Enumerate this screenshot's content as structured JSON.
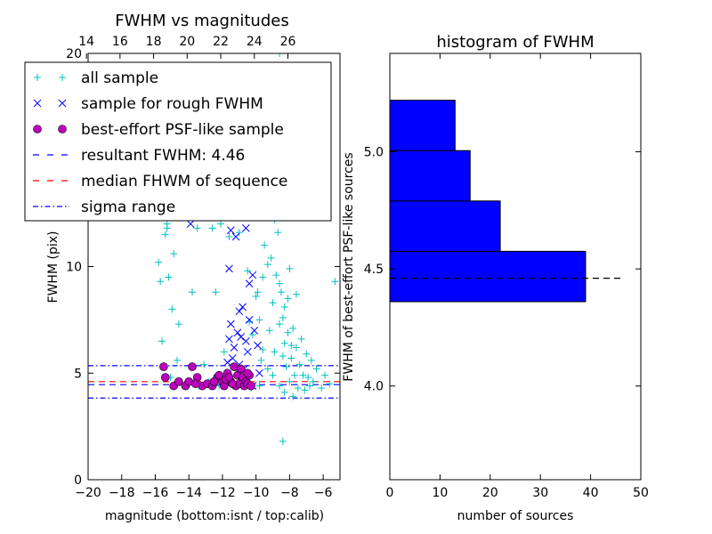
{
  "chart_data": [
    {
      "type": "scatter",
      "title": "FWHM vs magnitudes",
      "xlabel": "magnitude (bottom:isnt / top:calib)",
      "ylabel": "FWHM (pix)",
      "xlim": [
        -20,
        -5
      ],
      "ylim": [
        0,
        20
      ],
      "x_ticks": [
        -20,
        -18,
        -16,
        -14,
        -12,
        -10,
        -8,
        -6
      ],
      "x_tick_labels": [
        "−20",
        "−18",
        "−16",
        "−14",
        "−12",
        "−10",
        "−8",
        "−6"
      ],
      "y_ticks": [
        0,
        5,
        10,
        20
      ],
      "y_tick_labels": [
        "0",
        "5",
        "10",
        "20"
      ],
      "top_axis": {
        "ticks": [
          14,
          16,
          18,
          20,
          22,
          24,
          26
        ],
        "tick_labels": [
          "14",
          "16",
          "18",
          "20",
          "22",
          "24",
          "26"
        ],
        "offset": 34.1
      },
      "legend_position": "top-left",
      "legend": [
        {
          "label": "all sample",
          "marker": "plus",
          "color": "#00bfbf"
        },
        {
          "label": "sample for rough FWHM",
          "marker": "x",
          "color": "#0000ff"
        },
        {
          "label": "best-effort PSF-like sample",
          "marker": "circle",
          "color": "#bf00bf"
        },
        {
          "label": "resultant FWHM: 4.46",
          "line": "dashed",
          "color": "#0000ff"
        },
        {
          "label": "median FHWM of sequence",
          "line": "dashed",
          "color": "#ff0000"
        },
        {
          "label": "sigma range",
          "line": "dashdot",
          "color": "#0000ff"
        }
      ],
      "hlines": {
        "resultant": 4.46,
        "median": 4.6,
        "sigma_range": [
          3.83,
          5.35
        ]
      },
      "series": [
        {
          "name": "all sample",
          "marker": "plus",
          "color": "#00bfbf",
          "points": [
            [
              -15.8,
              10.2
            ],
            [
              -15.2,
              9.5
            ],
            [
              -15.4,
              11.5
            ],
            [
              -14.9,
              10.6
            ],
            [
              -14.6,
              7.3
            ],
            [
              -15.0,
              8.0
            ],
            [
              -15.6,
              6.5
            ],
            [
              -14.7,
              5.6
            ],
            [
              -15.7,
              9.3
            ],
            [
              -15.3,
              11.8
            ],
            [
              -15.3,
              12.0
            ],
            [
              -13.8,
              8.8
            ],
            [
              -13.5,
              11.8
            ],
            [
              -13.1,
              5.4
            ],
            [
              -12.6,
              11.8
            ],
            [
              -12.1,
              12.0
            ],
            [
              -12.4,
              8.8
            ],
            [
              -11.9,
              6.0
            ],
            [
              -11.6,
              11.4
            ],
            [
              -11.0,
              11.6
            ],
            [
              -10.8,
              12.3
            ],
            [
              -10.5,
              9.8
            ],
            [
              -10.4,
              7.4
            ],
            [
              -9.9,
              8.8
            ],
            [
              -9.6,
              9.5
            ],
            [
              -9.3,
              10.1
            ],
            [
              -9.4,
              12.4
            ],
            [
              -9.2,
              7.0
            ],
            [
              -9.0,
              8.3
            ],
            [
              -8.9,
              6.0
            ],
            [
              -8.7,
              11.6
            ],
            [
              -8.6,
              9.2
            ],
            [
              -8.4,
              7.6
            ],
            [
              -8.3,
              6.4
            ],
            [
              -8.1,
              8.5
            ],
            [
              -8.0,
              9.9
            ],
            [
              -7.9,
              5.7
            ],
            [
              -7.8,
              7.1
            ],
            [
              -7.6,
              6.2
            ],
            [
              -7.4,
              5.4
            ],
            [
              -7.2,
              4.9
            ],
            [
              -7.0,
              5.9
            ],
            [
              -6.8,
              4.4
            ],
            [
              -6.6,
              4.6
            ],
            [
              -6.4,
              5.2
            ],
            [
              -6.1,
              4.3
            ],
            [
              -5.9,
              4.9
            ],
            [
              -5.6,
              4.5
            ],
            [
              -5.3,
              9.3
            ],
            [
              -9.1,
              19.0
            ],
            [
              -8.8,
              19.3
            ],
            [
              -8.6,
              20.0
            ],
            [
              -9.4,
              18.8
            ],
            [
              -7.6,
              19.4
            ],
            [
              -9.7,
              13.9
            ],
            [
              -9.2,
              14.8
            ],
            [
              -8.9,
              16.0
            ],
            [
              -8.5,
              15.2
            ],
            [
              -9.0,
              17.1
            ],
            [
              -8.7,
              13.4
            ],
            [
              -8.2,
              12.7
            ],
            [
              -9.5,
              11.0
            ],
            [
              -9.1,
              10.4
            ],
            [
              -8.8,
              9.6
            ],
            [
              -8.5,
              8.8
            ],
            [
              -8.3,
              8.1
            ],
            [
              -8.6,
              7.3
            ],
            [
              -8.1,
              6.9
            ],
            [
              -7.9,
              6.3
            ],
            [
              -8.4,
              5.8
            ],
            [
              -8.2,
              5.3
            ],
            [
              -7.7,
              4.9
            ],
            [
              -8.0,
              4.6
            ],
            [
              -7.5,
              4.3
            ],
            [
              -8.3,
              4.1
            ],
            [
              -7.8,
              3.9
            ],
            [
              -8.6,
              4.4
            ],
            [
              -9.0,
              4.9
            ],
            [
              -9.3,
              5.2
            ],
            [
              -9.6,
              6.1
            ],
            [
              -9.8,
              7.5
            ],
            [
              -10.0,
              8.6
            ],
            [
              -10.2,
              6.8
            ],
            [
              -9.7,
              5.6
            ],
            [
              -8.4,
              1.8
            ],
            [
              -10.3,
              4.3
            ],
            [
              -10.6,
              4.8
            ],
            [
              -11.0,
              5.1
            ],
            [
              -11.3,
              4.5
            ],
            [
              -11.7,
              4.7
            ],
            [
              -12.2,
              4.4
            ],
            [
              -12.8,
              4.6
            ],
            [
              -13.4,
              4.4
            ],
            [
              -14.2,
              4.5
            ],
            [
              -15.1,
              4.8
            ],
            [
              -9.8,
              4.4
            ],
            [
              -7.1,
              4.2
            ],
            [
              -6.9,
              4.8
            ],
            [
              -7.3,
              6.6
            ],
            [
              -6.7,
              5.6
            ],
            [
              -7.6,
              8.7
            ],
            [
              -8.9,
              12.2
            ]
          ]
        },
        {
          "name": "sample for rough FWHM",
          "marker": "x",
          "color": "#0000ff",
          "points": [
            [
              -13.9,
              12.0
            ],
            [
              -11.5,
              11.7
            ],
            [
              -11.2,
              11.4
            ],
            [
              -10.6,
              11.8
            ],
            [
              -11.6,
              9.9
            ],
            [
              -10.4,
              9.2
            ],
            [
              -10.2,
              9.6
            ],
            [
              -10.8,
              8.1
            ],
            [
              -10.4,
              7.5
            ],
            [
              -11.0,
              7.9
            ],
            [
              -11.5,
              7.3
            ],
            [
              -11.1,
              6.9
            ],
            [
              -10.6,
              6.5
            ],
            [
              -10.9,
              6.7
            ],
            [
              -11.3,
              6.2
            ],
            [
              -11.6,
              6.6
            ],
            [
              -10.1,
              7.0
            ],
            [
              -10.5,
              6.0
            ],
            [
              -11.0,
              5.4
            ],
            [
              -11.4,
              5.7
            ],
            [
              -10.7,
              5.2
            ],
            [
              -10.8,
              4.7
            ],
            [
              -10.2,
              4.4
            ],
            [
              -9.9,
              6.3
            ],
            [
              -9.8,
              5.0
            ],
            [
              -11.7,
              5.5
            ]
          ]
        },
        {
          "name": "best-effort PSF-like sample",
          "marker": "circle",
          "color": "#bf00bf",
          "points": [
            [
              -15.5,
              5.3
            ],
            [
              -15.4,
              4.8
            ],
            [
              -14.9,
              4.4
            ],
            [
              -14.6,
              4.6
            ],
            [
              -14.2,
              4.4
            ],
            [
              -14.0,
              4.6
            ],
            [
              -13.8,
              5.3
            ],
            [
              -13.5,
              4.8
            ],
            [
              -13.2,
              4.4
            ],
            [
              -12.9,
              4.5
            ],
            [
              -12.6,
              4.4
            ],
            [
              -12.3,
              4.8
            ],
            [
              -12.0,
              4.6
            ],
            [
              -11.9,
              4.4
            ],
            [
              -11.7,
              5.0
            ],
            [
              -11.5,
              4.6
            ],
            [
              -11.3,
              5.3
            ],
            [
              -11.2,
              4.4
            ],
            [
              -11.1,
              4.9
            ],
            [
              -11.0,
              4.5
            ],
            [
              -10.9,
              5.2
            ],
            [
              -10.8,
              4.8
            ],
            [
              -10.7,
              4.4
            ],
            [
              -10.6,
              4.6
            ],
            [
              -10.5,
              4.5
            ],
            [
              -10.4,
              4.9
            ],
            [
              -11.8,
              4.7
            ],
            [
              -12.2,
              4.9
            ],
            [
              -10.3,
              4.4
            ],
            [
              -10.5,
              5.0
            ],
            [
              -11.4,
              4.5
            ],
            [
              -12.5,
              4.6
            ],
            [
              -13.6,
              4.5
            ],
            [
              -11.6,
              4.8
            ]
          ]
        }
      ]
    },
    {
      "type": "bar",
      "orientation": "horizontal",
      "title": "histogram of FWHM",
      "xlabel": "number of sources",
      "ylabel": "FWHM of best-effort PSF-like sources",
      "xlim": [
        0,
        50
      ],
      "ylim": [
        3.6,
        5.42
      ],
      "x_ticks": [
        0,
        10,
        20,
        30,
        40,
        50
      ],
      "y_ticks": [
        4.0,
        4.5,
        5.0
      ],
      "y_tick_labels": [
        "4.0",
        "4.5",
        "5.0"
      ],
      "bar_color": "#0000ff",
      "bins": [
        {
          "from": 4.36,
          "to": 4.575,
          "count": 39
        },
        {
          "from": 4.575,
          "to": 4.79,
          "count": 22
        },
        {
          "from": 4.79,
          "to": 5.005,
          "count": 16
        },
        {
          "from": 5.005,
          "to": 5.22,
          "count": 13
        }
      ],
      "median_line": 4.46
    }
  ]
}
